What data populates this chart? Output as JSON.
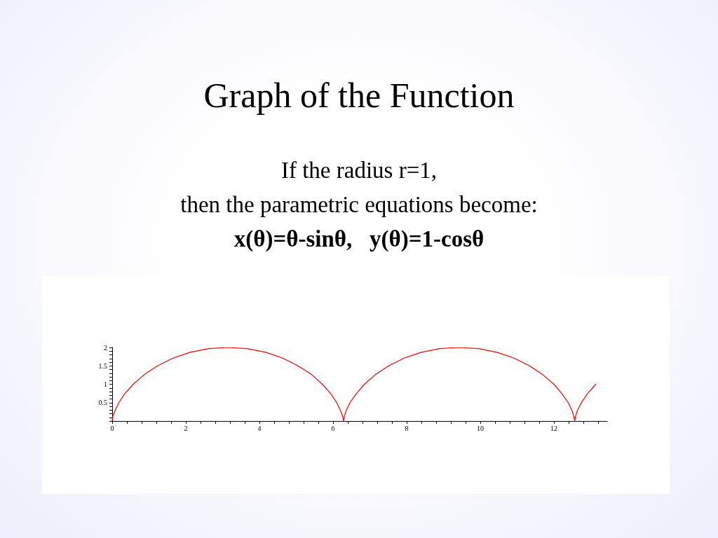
{
  "chart_data": {
    "type": "line",
    "title": "Graph of the Function",
    "subtitle": "If the radius r=1,\nthen the parametric equations become:",
    "annotations": [
      "x(θ)=θ-sinθ,   y(θ)=1-cosθ"
    ],
    "x": [
      0,
      0,
      0,
      0.02,
      0.08,
      0.18,
      0.34,
      0.57,
      0.87,
      1.23,
      1.65,
      2.12,
      2.62,
      3.14,
      3.66,
      4.17,
      4.63,
      5.05,
      5.42,
      5.71,
      5.94,
      6.1,
      6.2,
      6.26,
      6.28,
      6.28,
      6.29,
      6.31,
      6.36,
      6.46,
      6.63,
      6.85,
      7.15,
      7.51,
      7.93,
      8.4,
      8.9,
      9.42,
      9.95,
      10.45,
      10.92,
      11.34,
      11.7,
      12,
      12.22,
      12.39,
      12.49,
      12.54,
      12.56,
      12.57,
      12.57,
      12.59,
      12.64,
      12.75,
      12.91,
      13.14
    ],
    "values": [
      0,
      0.01,
      0.03,
      0.13,
      0.29,
      0.5,
      0.74,
      1,
      1.26,
      1.5,
      1.71,
      1.87,
      1.97,
      2,
      1.97,
      1.87,
      1.71,
      1.5,
      1.26,
      1,
      0.74,
      0.5,
      0.29,
      0.13,
      0.03,
      0,
      0.03,
      0.13,
      0.29,
      0.5,
      0.74,
      1,
      1.26,
      1.5,
      1.71,
      1.87,
      1.97,
      2,
      1.97,
      1.87,
      1.71,
      1.5,
      1.26,
      1,
      0.74,
      0.5,
      0.29,
      0.13,
      0.03,
      0,
      0.03,
      0.13,
      0.29,
      0.5,
      0.74,
      1
    ],
    "color": "#ff0000",
    "marker": "none",
    "line_style": "solid",
    "xlim": [
      0,
      13.45
    ],
    "xticks": [
      0,
      {
        "value": 0.4,
        "label": null
      },
      {
        "value": 0.8,
        "label": null
      },
      {
        "value": 1.2,
        "label": null
      },
      {
        "value": 1.6,
        "label": null
      },
      2,
      {
        "value": 2.4,
        "label": null
      },
      {
        "value": 2.8,
        "label": null
      },
      {
        "value": 3.2,
        "label": null
      },
      {
        "value": 3.6,
        "label": null
      },
      4,
      {
        "value": 4.4,
        "label": null
      },
      {
        "value": 4.8,
        "label": null
      },
      {
        "value": 5.2,
        "label": null
      },
      {
        "value": 5.6,
        "label": null
      },
      6,
      {
        "value": 6.4,
        "label": null
      },
      {
        "value": 6.8,
        "label": null
      },
      {
        "value": 7.2,
        "label": null
      },
      {
        "value": 7.6,
        "label": null
      },
      8,
      {
        "value": 8.4,
        "label": null
      },
      {
        "value": 8.8,
        "label": null
      },
      {
        "value": 9.2,
        "label": null
      },
      {
        "value": 9.6,
        "label": null
      },
      10,
      {
        "value": 10.4,
        "label": null
      },
      {
        "value": 10.8,
        "label": null
      },
      {
        "value": 11.2,
        "label": null
      },
      {
        "value": 11.6,
        "label": null
      },
      12,
      {
        "value": 12.4,
        "label": null
      },
      {
        "value": 12.8,
        "label": null
      },
      {
        "value": 13.2,
        "label": null
      }
    ],
    "ylim": [
      0,
      2
    ],
    "yticks": [
      {
        "value": 0,
        "label": null
      },
      {
        "value": 0.1,
        "label": null
      },
      {
        "value": 0.2,
        "label": null
      },
      {
        "value": 0.3,
        "label": null
      },
      {
        "value": 0.4,
        "label": null
      },
      0.5,
      {
        "value": 0.6,
        "label": null
      },
      {
        "value": 0.7,
        "label": null
      },
      {
        "value": 0.8,
        "label": null
      },
      {
        "value": 0.9,
        "label": null
      },
      1,
      {
        "value": 1.1,
        "label": null
      },
      {
        "value": 1.2,
        "label": null
      },
      {
        "value": 1.3,
        "label": null
      },
      {
        "value": 1.4,
        "label": null
      },
      1.5,
      {
        "value": 1.6,
        "label": null
      },
      {
        "value": 1.7,
        "label": null
      },
      {
        "value": 1.8,
        "label": null
      },
      {
        "value": 1.9,
        "label": null
      },
      2
    ]
  }
}
